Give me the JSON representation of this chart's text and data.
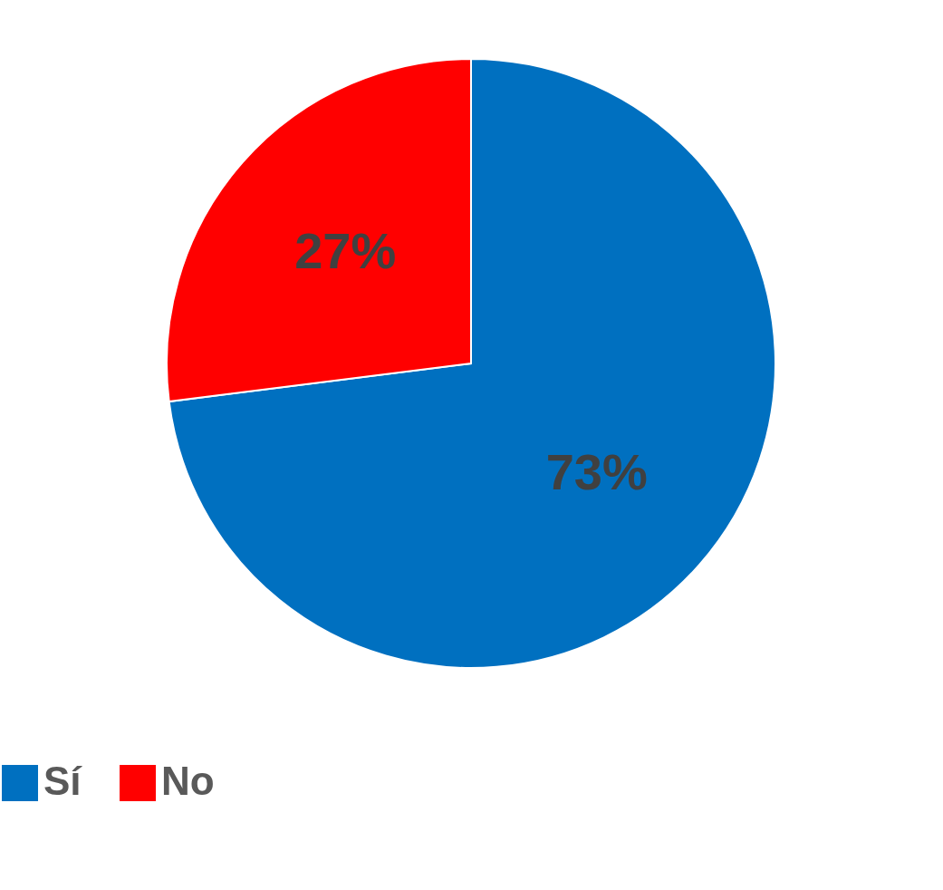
{
  "chart_data": {
    "type": "pie",
    "categories": [
      "Sí",
      "No"
    ],
    "values": [
      73,
      27
    ],
    "colors": [
      "#0070c0",
      "#ff0000"
    ],
    "value_labels": [
      "73%",
      "27%"
    ],
    "legend": "bottom"
  }
}
